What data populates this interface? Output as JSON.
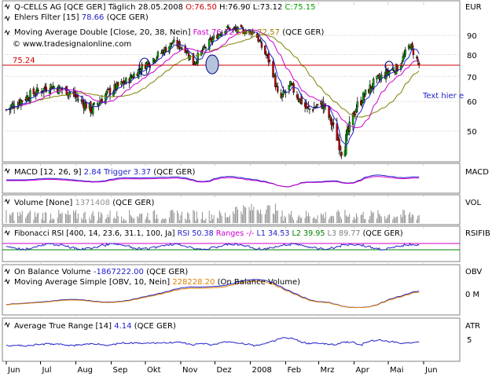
{
  "main": {
    "instrument": "Q-CELLS AG [QCE GER]",
    "period": "Täglich",
    "date": "28.05.2008",
    "open": "O:76.50",
    "high": "H:76.90",
    "low": "L:73.12",
    "close": "C:75.15",
    "currency": "EUR",
    "watermark": "© www.tradesignalonline.com",
    "price_line_label": "75.24",
    "annotation": "Text hier e",
    "ehlers_label": "Ehlers Filter [15]",
    "ehlers_value": "78.66",
    "ehlers_suffix": "(QCE GER)",
    "ma_label": "Moving Average Double [Close, 20, 38, Nein]",
    "ma_fast": "Fast 76.12",
    "ma_slow": "Slow 72.57",
    "ma_suffix": "(QCE GER)",
    "y_ticks": [
      "90",
      "80",
      "70",
      "60",
      "50"
    ],
    "colors": {
      "up": "#00aa00",
      "down": "#cc0000",
      "ehlers": "#2020cc",
      "fast": "#cc00cc",
      "slow": "#808000",
      "ref": "#cc0000"
    }
  },
  "macd": {
    "label": "MACD [12, 26, 9]",
    "value": "2.84",
    "trigger": "Trigger 3.37",
    "suffix": "(QCE GER)",
    "axis": "MACD"
  },
  "volume": {
    "label": "Volume [None]",
    "value": "1371408",
    "suffix": "(QCE GER)",
    "axis": "VOL"
  },
  "fib": {
    "label": "Fibonacci RSI [400, 14, 23.6, 31.1, 100, Ja]",
    "rsi": "RSI 50.38",
    "ranges": "Ranges -/-",
    "l1": "L1 34.53",
    "l2": "L2 39.95",
    "l3": "L3 89.77",
    "suffix": "(QCE GER)",
    "axis": "RSIFIB"
  },
  "obv": {
    "label": "On Balance Volume",
    "value": "-1867222.00",
    "suffix": "(QCE GER)",
    "ma_label": "Moving Average Simple [OBV, 10, Nein]",
    "ma_value": "228228.20",
    "ma_suffix": "(On Balance Volume)",
    "axis": "OBV",
    "tick": "0 M"
  },
  "atr": {
    "label": "Average True Range [14]",
    "value": "4.14",
    "suffix": "(QCE GER)",
    "axis": "ATR",
    "tick": "5"
  },
  "x_labels": [
    "Jun",
    "Jul",
    "Aug",
    "Sep",
    "Okt",
    "Nov",
    "Dez",
    "2008",
    "Feb",
    "Mrz",
    "Apr",
    "Mai",
    "Jun"
  ],
  "chart_data": {
    "type": "candlestick",
    "x_range": [
      "2007-06",
      "2008-06"
    ],
    "close_anchors": [
      {
        "x": "2007-06-01",
        "close": 57
      },
      {
        "x": "2007-06-20",
        "close": 62
      },
      {
        "x": "2007-07-10",
        "close": 66
      },
      {
        "x": "2007-07-25",
        "close": 64
      },
      {
        "x": "2007-08-15",
        "close": 57
      },
      {
        "x": "2007-08-28",
        "close": 63
      },
      {
        "x": "2007-09-15",
        "close": 68
      },
      {
        "x": "2007-09-28",
        "close": 74
      },
      {
        "x": "2007-10-15",
        "close": 81
      },
      {
        "x": "2007-10-25",
        "close": 86
      },
      {
        "x": "2007-11-05",
        "close": 83
      },
      {
        "x": "2007-11-12",
        "close": 76
      },
      {
        "x": "2007-11-26",
        "close": 86
      },
      {
        "x": "2007-12-10",
        "close": 94
      },
      {
        "x": "2007-12-20",
        "close": 93
      },
      {
        "x": "2008-01-05",
        "close": 92
      },
      {
        "x": "2008-01-10",
        "close": 85
      },
      {
        "x": "2008-01-20",
        "close": 74
      },
      {
        "x": "2008-01-26",
        "close": 60
      },
      {
        "x": "2008-02-05",
        "close": 66
      },
      {
        "x": "2008-02-20",
        "close": 57
      },
      {
        "x": "2008-03-05",
        "close": 59
      },
      {
        "x": "2008-03-15",
        "close": 50
      },
      {
        "x": "2008-03-22",
        "close": 44
      },
      {
        "x": "2008-04-03",
        "close": 58
      },
      {
        "x": "2008-04-18",
        "close": 67
      },
      {
        "x": "2008-05-01",
        "close": 72
      },
      {
        "x": "2008-05-10",
        "close": 74
      },
      {
        "x": "2008-05-20",
        "close": 85
      },
      {
        "x": "2008-05-28",
        "close": 75.15
      }
    ],
    "reference_level": 75.24,
    "ylim": [
      43,
      98
    ]
  }
}
